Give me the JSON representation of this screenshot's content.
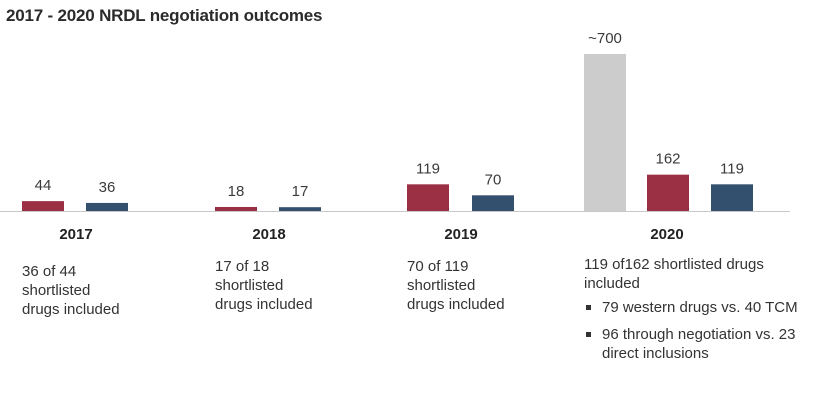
{
  "title": "2017 - 2020 NRDL negotiation outcomes",
  "colors": {
    "gray": "#cccccc",
    "red": "#9b3045",
    "blue": "#34506f",
    "baseline": "#c8c8c8"
  },
  "chart_data": {
    "type": "bar",
    "title": "2017 - 2020 NRDL negotiation outcomes",
    "categories": [
      "2017",
      "2018",
      "2019",
      "2020"
    ],
    "series": [
      {
        "color": "gray",
        "values": [
          null,
          null,
          null,
          700
        ],
        "labels": [
          "",
          "",
          "",
          "~700"
        ]
      },
      {
        "color": "red",
        "values": [
          44,
          18,
          119,
          162
        ],
        "labels": [
          "44",
          "18",
          "119",
          "162"
        ]
      },
      {
        "color": "blue",
        "values": [
          36,
          17,
          70,
          119
        ],
        "labels": [
          "36",
          "17",
          "70",
          "119"
        ]
      }
    ],
    "ylim": [
      0,
      700
    ]
  },
  "notes": {
    "y2017": [
      "36 of 44",
      "shortlisted",
      "drugs included"
    ],
    "y2018": [
      "17 of 18",
      "shortlisted",
      "drugs included"
    ],
    "y2019": [
      "70 of 119",
      "shortlisted",
      "drugs included"
    ],
    "y2020": [
      "119 of162 shortlisted drugs",
      "included"
    ],
    "y2020_bullets": [
      "79 western drugs vs. 40 TCM",
      "96 through negotiation vs. 23 direct inclusions"
    ]
  }
}
